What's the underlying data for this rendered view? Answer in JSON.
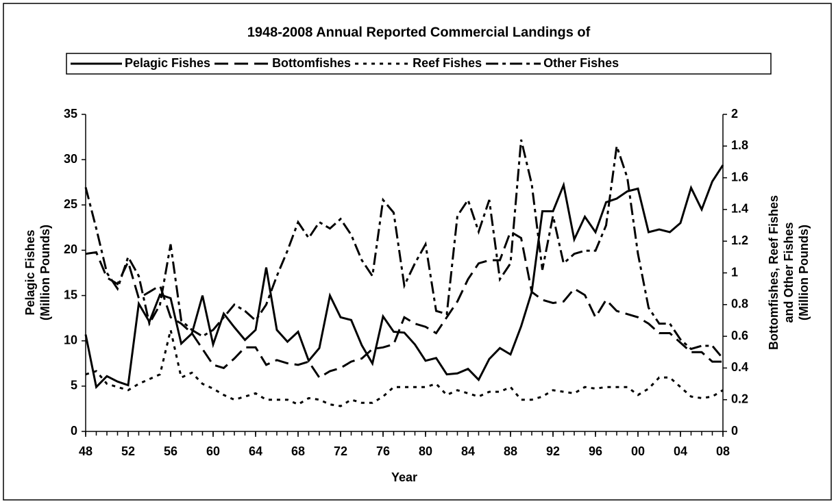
{
  "chart_data": {
    "type": "line",
    "title": "1948-2008 Annual Reported Commercial Landings of",
    "xlabel": "Year",
    "ylabel": [
      "Pelagic Fishes",
      "(Million Pounds)"
    ],
    "y2label": [
      "Bottomfishes, Reef Fishes",
      "and Other Fishes",
      "(Million Pounds)"
    ],
    "legend": "top",
    "x": [
      1948,
      1949,
      1950,
      1951,
      1952,
      1953,
      1954,
      1955,
      1956,
      1957,
      1958,
      1959,
      1960,
      1961,
      1962,
      1963,
      1964,
      1965,
      1966,
      1967,
      1968,
      1969,
      1970,
      1971,
      1972,
      1973,
      1974,
      1975,
      1976,
      1977,
      1978,
      1979,
      1980,
      1981,
      1982,
      1983,
      1984,
      1985,
      1986,
      1987,
      1988,
      1989,
      1990,
      1991,
      1992,
      1993,
      1994,
      1995,
      1996,
      1997,
      1998,
      1999,
      2000,
      2001,
      2002,
      2003,
      2004,
      2005,
      2006,
      2007,
      2008
    ],
    "xlim": [
      1948,
      2008
    ],
    "xticks": [
      {
        "value": 1948,
        "label": "48"
      },
      {
        "value": 1952,
        "label": "52"
      },
      {
        "value": 1956,
        "label": "56"
      },
      {
        "value": 1960,
        "label": "60"
      },
      {
        "value": 1964,
        "label": "64"
      },
      {
        "value": 1968,
        "label": "68"
      },
      {
        "value": 1972,
        "label": "72"
      },
      {
        "value": 1976,
        "label": "76"
      },
      {
        "value": 1980,
        "label": "80"
      },
      {
        "value": 1984,
        "label": "84"
      },
      {
        "value": 1988,
        "label": "88"
      },
      {
        "value": 1992,
        "label": "92"
      },
      {
        "value": 1996,
        "label": "96"
      },
      {
        "value": 2000,
        "label": "00"
      },
      {
        "value": 2004,
        "label": "04"
      },
      {
        "value": 2008,
        "label": "08"
      }
    ],
    "ylim": [
      0,
      35
    ],
    "yticks": [
      0,
      5,
      10,
      15,
      20,
      25,
      30,
      35
    ],
    "y2lim": [
      0,
      2
    ],
    "y2ticks": [
      0,
      0.2,
      0.4,
      0.6,
      0.8,
      1,
      1.2,
      1.4,
      1.6,
      1.8,
      2
    ],
    "series": [
      {
        "name": "Pelagic Fishes",
        "color": "#000000",
        "dash": "solid",
        "values": [
          10.7,
          4.9,
          6.1,
          5.5,
          5.1,
          14.1,
          12.1,
          15.1,
          14.7,
          9.7,
          10.8,
          15.0,
          9.6,
          13.0,
          11.5,
          10.1,
          11.2,
          18.1,
          11.2,
          9.9,
          11.0,
          7.8,
          9.2,
          15.0,
          12.6,
          12.3,
          9.5,
          7.5,
          12.7,
          11.0,
          10.9,
          9.6,
          7.8,
          8.1,
          6.3,
          6.4,
          6.9,
          5.7,
          8.0,
          9.2,
          8.5,
          11.6,
          15.4,
          24.3,
          24.3,
          27.2,
          21.2,
          23.7,
          22.0,
          25.3,
          25.7,
          26.5,
          26.8,
          22.0,
          22.3,
          22.0,
          23.0,
          26.9,
          24.5,
          27.6,
          29.4
        ]
      },
      {
        "name": "Bottomfishes",
        "color": "#000000",
        "dash": "long",
        "axis": "y2",
        "values": [
          1.12,
          1.13,
          0.97,
          0.93,
          1.07,
          0.84,
          0.88,
          0.92,
          0.72,
          0.68,
          0.62,
          0.52,
          0.42,
          0.4,
          0.46,
          0.53,
          0.53,
          0.42,
          0.45,
          0.43,
          0.42,
          0.44,
          0.34,
          0.38,
          0.4,
          0.44,
          0.46,
          0.52,
          0.53,
          0.55,
          0.72,
          0.68,
          0.66,
          0.62,
          0.72,
          0.82,
          0.96,
          1.06,
          1.08,
          1.08,
          1.26,
          1.22,
          0.88,
          0.83,
          0.81,
          0.82,
          0.9,
          0.86,
          0.72,
          0.83,
          0.76,
          0.74,
          0.72,
          0.68,
          0.62,
          0.62,
          0.56,
          0.5,
          0.5,
          0.44,
          0.44
        ]
      },
      {
        "name": "Reef Fishes",
        "color": "#000000",
        "dash": "short",
        "axis": "y2",
        "values": [
          0.36,
          0.38,
          0.3,
          0.28,
          0.26,
          0.3,
          0.33,
          0.36,
          0.64,
          0.34,
          0.37,
          0.3,
          0.27,
          0.23,
          0.2,
          0.22,
          0.24,
          0.2,
          0.2,
          0.2,
          0.17,
          0.21,
          0.2,
          0.17,
          0.16,
          0.2,
          0.18,
          0.18,
          0.22,
          0.28,
          0.28,
          0.28,
          0.28,
          0.3,
          0.23,
          0.26,
          0.24,
          0.22,
          0.25,
          0.25,
          0.28,
          0.2,
          0.2,
          0.22,
          0.26,
          0.25,
          0.24,
          0.28,
          0.27,
          0.28,
          0.28,
          0.28,
          0.23,
          0.27,
          0.34,
          0.34,
          0.28,
          0.22,
          0.21,
          0.22,
          0.26
        ]
      },
      {
        "name": "Other Fishes",
        "color": "#000000",
        "dash": "dashdot",
        "axis": "y2",
        "values": [
          1.54,
          1.28,
          1.0,
          0.9,
          1.1,
          0.98,
          0.68,
          0.8,
          1.18,
          0.7,
          0.64,
          0.6,
          0.64,
          0.72,
          0.8,
          0.76,
          0.7,
          0.8,
          0.98,
          1.14,
          1.32,
          1.22,
          1.32,
          1.28,
          1.34,
          1.24,
          1.08,
          0.98,
          1.46,
          1.38,
          0.92,
          1.06,
          1.18,
          0.76,
          0.74,
          1.36,
          1.46,
          1.26,
          1.46,
          0.96,
          1.06,
          1.84,
          1.56,
          1.02,
          1.36,
          1.06,
          1.12,
          1.14,
          1.14,
          1.3,
          1.8,
          1.6,
          1.12,
          0.78,
          0.68,
          0.68,
          0.58,
          0.52,
          0.54,
          0.54,
          0.46
        ]
      }
    ]
  }
}
